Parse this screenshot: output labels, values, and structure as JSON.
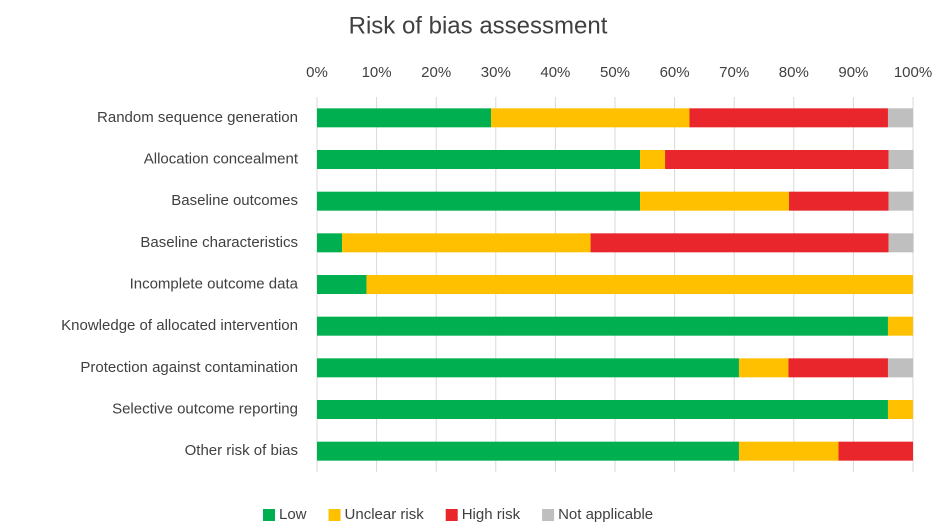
{
  "chart_data": {
    "type": "stacked_bar_horizontal",
    "title": "Risk of bias assessment",
    "categories": [
      "Random sequence generation",
      "Allocation concealment",
      "Baseline outcomes",
      "Baseline characteristics",
      "Incomplete outcome data",
      "Knowledge of allocated intervention",
      "Protection against contamination",
      "Selective outcome reporting",
      "Other risk of bias"
    ],
    "series": [
      {
        "name": "Low",
        "color": "#00b050",
        "values": [
          29.2,
          54.2,
          54.2,
          4.2,
          8.3,
          95.8,
          70.8,
          95.8,
          70.8
        ]
      },
      {
        "name": "Unclear risk",
        "color": "#ffc000",
        "values": [
          33.3,
          4.2,
          25,
          41.7,
          91.7,
          4.2,
          8.3,
          4.2,
          16.7
        ]
      },
      {
        "name": "High risk",
        "color": "#e8262c",
        "values": [
          33.3,
          37.5,
          16.7,
          50,
          0,
          0,
          16.7,
          0,
          12.5
        ]
      },
      {
        "name": "Not applicable",
        "color": "#bfbfbf",
        "values": [
          4.2,
          4.2,
          4.2,
          4.2,
          0,
          0,
          4.2,
          0,
          0
        ]
      }
    ],
    "xlim": [
      0,
      100
    ],
    "xticks": [
      {
        "value": 0,
        "label": "0%"
      },
      {
        "value": 10,
        "label": "10%"
      },
      {
        "value": 20,
        "label": "20%"
      },
      {
        "value": 30,
        "label": "30%"
      },
      {
        "value": 40,
        "label": "40%"
      },
      {
        "value": 50,
        "label": "50%"
      },
      {
        "value": 60,
        "label": "60%"
      },
      {
        "value": 70,
        "label": "70%"
      },
      {
        "value": 80,
        "label": "80%"
      },
      {
        "value": 90,
        "label": "90%"
      },
      {
        "value": 100,
        "label": "100%"
      }
    ],
    "grid": true,
    "legend": "bottom"
  }
}
